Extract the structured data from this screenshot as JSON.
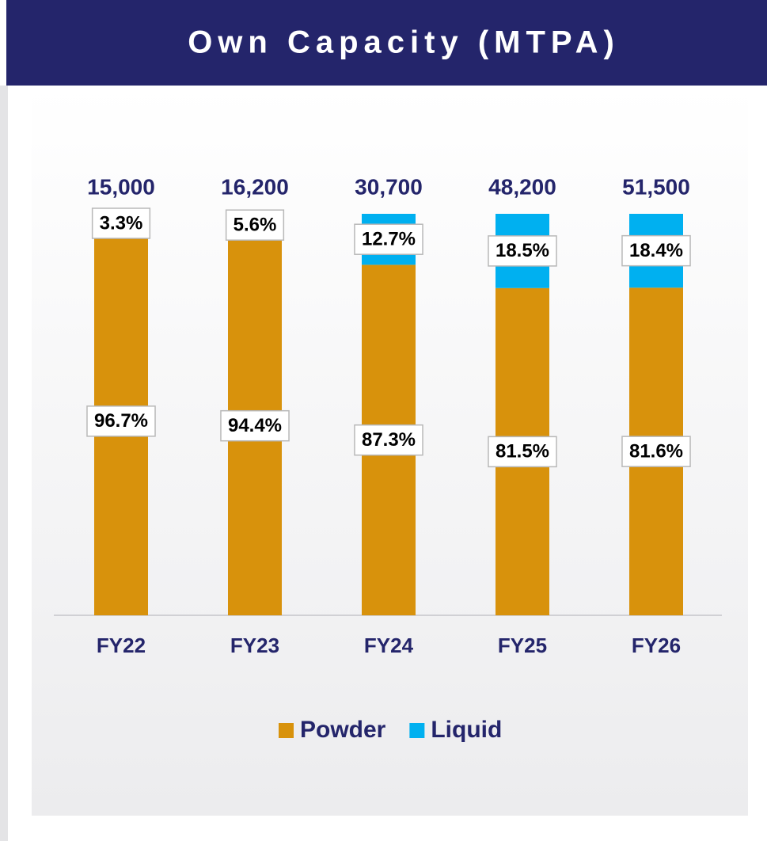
{
  "chart_data": {
    "type": "stacked_percent_bar",
    "title": "Own Capacity (MTPA)",
    "categories": [
      "FY22",
      "FY23",
      "FY24",
      "FY25",
      "FY26"
    ],
    "series": [
      {
        "name": "Powder",
        "color": "#d8920c",
        "values": [
          96.7,
          94.4,
          87.3,
          81.5,
          81.6
        ],
        "value_labels": [
          "96.7%",
          "94.4%",
          "87.3%",
          "81.5%",
          "81.6%"
        ]
      },
      {
        "name": "Liquid",
        "color": "#00b0f0",
        "values": [
          3.3,
          5.6,
          12.7,
          18.5,
          18.4
        ],
        "value_labels": [
          "3.3%",
          "5.6%",
          "12.7%",
          "18.5%",
          "18.4%"
        ]
      }
    ],
    "totals": {
      "values": [
        15000,
        16200,
        30700,
        48200,
        51500
      ],
      "value_labels": [
        "15,000",
        "16,200",
        "30,700",
        "48,200",
        "51,500"
      ]
    },
    "ylim": [
      0,
      100
    ],
    "legend": "bottom"
  }
}
